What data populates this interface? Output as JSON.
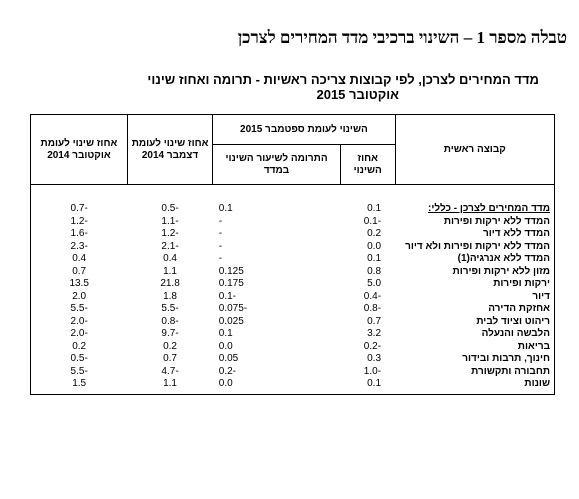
{
  "header": {
    "title": "טבלה מספר 1 – השינוי ברכיבי מדד המחירים לצרכן"
  },
  "table": {
    "caption": [
      "מדד המחירים לצרכן, לפי קבוצות צריכה ראשיות - תרומה ואחוז שינוי",
      "אוקטובר 2015"
    ],
    "columns": {
      "group": "קבוצה ראשית",
      "vs_prev_group": "השינוי לעומת ספטמבר 2015",
      "pct": "אחוז השינוי",
      "contribution": "התרומה לשיעור השינוי במדד",
      "vs_dec": "אחוז שינוי לעומת דצמבר 2014",
      "vs_oct": "אחוז שינוי לעומת אוקטובר 2014"
    },
    "rows": [
      [
        "מדד המחירים לצרכן - כללי:",
        "0.1",
        "0.1",
        "-0.5",
        "-0.7"
      ],
      [
        "המדד ללא ירקות ופירות",
        "-0.1",
        "-",
        "-1.1",
        "-1.2"
      ],
      [
        "המדד ללא דיור",
        "0.2",
        "-",
        "-1.2",
        "-1.6"
      ],
      [
        "המדד ללא ירקות ופירות ולא דיור",
        "0.0",
        "-",
        "-2.1",
        "-2.3"
      ],
      [
        "המדד ללא אנרגיה(1)",
        "0.1",
        "-",
        "0.4",
        "0.4"
      ],
      [
        "מזון ללא ירקות ופירות",
        "0.8",
        "0.125",
        "1.1",
        "0.7"
      ],
      [
        "ירקות ופירות",
        "5.0",
        "0.175",
        "21.8",
        "13.5"
      ],
      [
        "דיור",
        "-0.4",
        "-0.1",
        "1.8",
        "2.0"
      ],
      [
        "אחזקת הדירה",
        "-0.8",
        "-0.075",
        "-5.5",
        "-5.5"
      ],
      [
        "ריהוט וציוד לבית",
        "0.7",
        "0.025",
        "-0.8",
        "-2.0"
      ],
      [
        "הלבשה והנעלה",
        "3.2",
        "0.1",
        "-9.7",
        "-2.0"
      ],
      [
        "בריאות",
        "-0.2",
        "0.0",
        "0.2",
        "0.2"
      ],
      [
        "חינוך, תרבות ובידור",
        "0.3",
        "0.05",
        "0.7",
        "-0.5"
      ],
      [
        "תחבורה ותקשורת",
        "-1.0",
        "-0.2",
        "-4.7",
        "-5.5"
      ],
      [
        "שונות",
        "0.1",
        "0.0",
        "1.1",
        "1.5"
      ]
    ]
  }
}
